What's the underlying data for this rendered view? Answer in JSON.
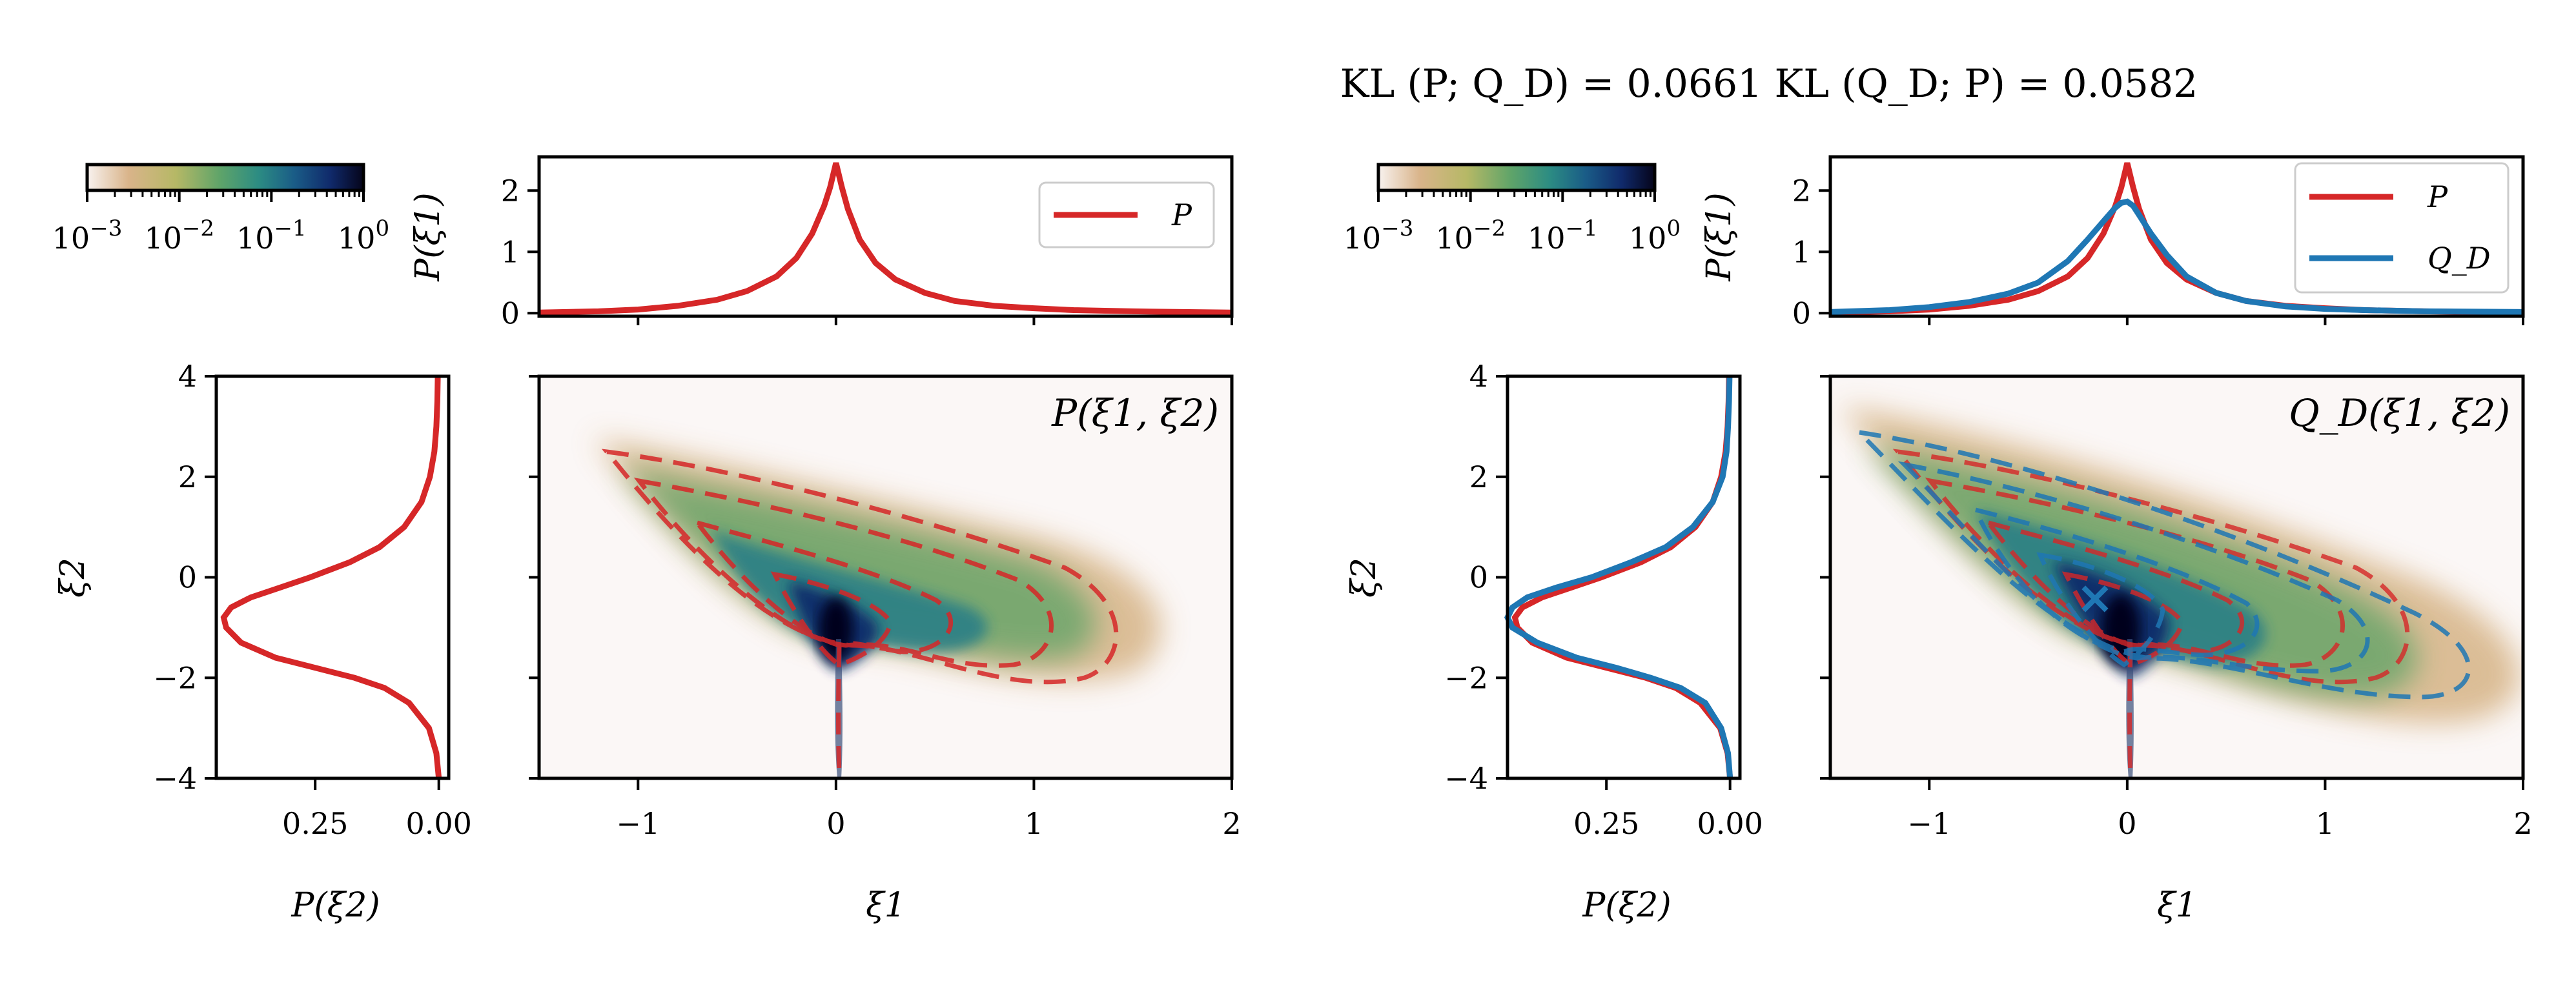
{
  "figure_title": "KL (P; Q_D) = 0.0661    KL (Q_D; P) = 0.0582",
  "colors": {
    "P": "#d62728",
    "Q": "#1f77b4"
  },
  "colorbar": {
    "ticks": [
      "10^-3",
      "10^-2",
      "10^-1",
      "10^0"
    ],
    "stops": [
      "#f8f2ef",
      "#d9b48a",
      "#b6b866",
      "#5fa469",
      "#2c8c83",
      "#1a5c87",
      "#102a6b",
      "#05041a"
    ]
  },
  "chart_data": [
    {
      "type": "line",
      "panel": "left-top",
      "title": "",
      "xlabel": "",
      "ylabel": "P(ξ1)",
      "xlim": [
        -1.5,
        2
      ],
      "ylim": [
        -0.05,
        2.55
      ],
      "yticks": [
        "0",
        "1",
        "2"
      ],
      "legend": [
        "P"
      ],
      "legend_position": "top-right",
      "series": [
        {
          "name": "P",
          "x": [
            -1.5,
            -1.2,
            -1.0,
            -0.8,
            -0.6,
            -0.45,
            -0.3,
            -0.2,
            -0.12,
            -0.06,
            -0.03,
            0.0,
            0.03,
            0.06,
            0.12,
            0.2,
            0.3,
            0.45,
            0.6,
            0.8,
            1.0,
            1.2,
            1.5,
            2.0
          ],
          "values": [
            0.01,
            0.03,
            0.06,
            0.12,
            0.22,
            0.36,
            0.6,
            0.9,
            1.3,
            1.75,
            2.05,
            2.45,
            2.05,
            1.7,
            1.2,
            0.82,
            0.55,
            0.33,
            0.2,
            0.12,
            0.08,
            0.05,
            0.03,
            0.01
          ]
        }
      ]
    },
    {
      "type": "line",
      "panel": "left-side",
      "xlabel": "P(ξ2)",
      "ylabel": "ξ2",
      "xlim": [
        0.45,
        -0.02
      ],
      "ylim": [
        -4,
        4
      ],
      "xticks": [
        "0.25",
        "0.00"
      ],
      "yticks": [
        "4",
        "2",
        "0",
        "−2",
        "−4"
      ],
      "series": [
        {
          "name": "P",
          "y": [
            -4.0,
            -3.5,
            -3.0,
            -2.5,
            -2.2,
            -2.0,
            -1.8,
            -1.6,
            -1.3,
            -1.0,
            -0.8,
            -0.6,
            -0.4,
            -0.2,
            0.0,
            0.3,
            0.6,
            1.0,
            1.5,
            2.0,
            2.5,
            3.0,
            3.5,
            4.0
          ],
          "values": [
            0.0,
            0.005,
            0.02,
            0.06,
            0.11,
            0.17,
            0.25,
            0.33,
            0.4,
            0.43,
            0.435,
            0.42,
            0.38,
            0.32,
            0.26,
            0.18,
            0.12,
            0.07,
            0.035,
            0.018,
            0.009,
            0.005,
            0.003,
            0.002
          ]
        }
      ]
    },
    {
      "type": "heatmap",
      "panel": "left-main",
      "label": "P(ξ1, ξ2)",
      "xlabel": "ξ1",
      "xlim": [
        -1.5,
        2
      ],
      "ylim": [
        -4,
        4
      ],
      "xticks": [
        "−1",
        "0",
        "1",
        "2"
      ],
      "contour_levels": 4
    },
    {
      "type": "line",
      "panel": "right-top",
      "xlabel": "",
      "ylabel": "P(ξ1)",
      "xlim": [
        -1.5,
        2
      ],
      "ylim": [
        -0.05,
        2.55
      ],
      "yticks": [
        "0",
        "1",
        "2"
      ],
      "legend": [
        "P",
        "Q_D"
      ],
      "legend_position": "top-right",
      "series": [
        {
          "name": "P",
          "x": [
            -1.5,
            -1.2,
            -1.0,
            -0.8,
            -0.6,
            -0.45,
            -0.3,
            -0.2,
            -0.12,
            -0.06,
            -0.03,
            0.0,
            0.03,
            0.06,
            0.12,
            0.2,
            0.3,
            0.45,
            0.6,
            0.8,
            1.0,
            1.2,
            1.5,
            2.0
          ],
          "values": [
            0.01,
            0.03,
            0.06,
            0.12,
            0.22,
            0.36,
            0.6,
            0.9,
            1.3,
            1.75,
            2.05,
            2.45,
            2.05,
            1.7,
            1.2,
            0.82,
            0.55,
            0.33,
            0.2,
            0.12,
            0.08,
            0.05,
            0.03,
            0.01
          ]
        },
        {
          "name": "Q_D",
          "x": [
            -1.5,
            -1.2,
            -1.0,
            -0.8,
            -0.6,
            -0.45,
            -0.3,
            -0.2,
            -0.12,
            -0.06,
            -0.03,
            0.0,
            0.03,
            0.06,
            0.12,
            0.2,
            0.3,
            0.45,
            0.6,
            0.8,
            1.0,
            1.2,
            1.5,
            2.0
          ],
          "values": [
            0.02,
            0.05,
            0.1,
            0.18,
            0.32,
            0.5,
            0.85,
            1.2,
            1.5,
            1.72,
            1.8,
            1.82,
            1.75,
            1.6,
            1.3,
            0.95,
            0.6,
            0.33,
            0.2,
            0.11,
            0.07,
            0.05,
            0.03,
            0.02
          ]
        }
      ]
    },
    {
      "type": "line",
      "panel": "right-side",
      "xlabel": "P(ξ2)",
      "ylabel": "ξ2",
      "xlim": [
        0.45,
        -0.02
      ],
      "ylim": [
        -4,
        4
      ],
      "xticks": [
        "0.25",
        "0.00"
      ],
      "yticks": [
        "4",
        "2",
        "0",
        "−2",
        "−4"
      ],
      "series": [
        {
          "name": "P",
          "y": [
            -4.0,
            -3.5,
            -3.0,
            -2.5,
            -2.2,
            -2.0,
            -1.8,
            -1.6,
            -1.3,
            -1.0,
            -0.8,
            -0.6,
            -0.4,
            -0.2,
            0.0,
            0.3,
            0.6,
            1.0,
            1.5,
            2.0,
            2.5,
            3.0,
            3.5,
            4.0
          ],
          "values": [
            0.0,
            0.005,
            0.02,
            0.06,
            0.11,
            0.17,
            0.25,
            0.33,
            0.4,
            0.43,
            0.435,
            0.42,
            0.38,
            0.32,
            0.26,
            0.18,
            0.12,
            0.07,
            0.035,
            0.018,
            0.009,
            0.005,
            0.003,
            0.002
          ]
        },
        {
          "name": "Q_D",
          "y": [
            -4.0,
            -3.5,
            -3.0,
            -2.5,
            -2.2,
            -2.0,
            -1.8,
            -1.6,
            -1.3,
            -1.0,
            -0.8,
            -0.6,
            -0.4,
            -0.2,
            0.0,
            0.3,
            0.6,
            1.0,
            1.5,
            2.0,
            2.5,
            3.0,
            3.5,
            4.0
          ],
          "values": [
            0.0,
            0.004,
            0.018,
            0.05,
            0.1,
            0.16,
            0.23,
            0.31,
            0.39,
            0.44,
            0.45,
            0.44,
            0.41,
            0.35,
            0.28,
            0.2,
            0.13,
            0.075,
            0.035,
            0.015,
            0.007,
            0.004,
            0.002,
            0.001
          ]
        }
      ]
    },
    {
      "type": "heatmap",
      "panel": "right-main",
      "label": "Q_D(ξ1, ξ2)",
      "xlabel": "ξ1",
      "xlim": [
        -1.5,
        2
      ],
      "ylim": [
        -4,
        4
      ],
      "xticks": [
        "−1",
        "0",
        "1",
        "2"
      ],
      "marker": {
        "x": -0.15,
        "y": -0.5,
        "symbol": "×"
      }
    }
  ]
}
